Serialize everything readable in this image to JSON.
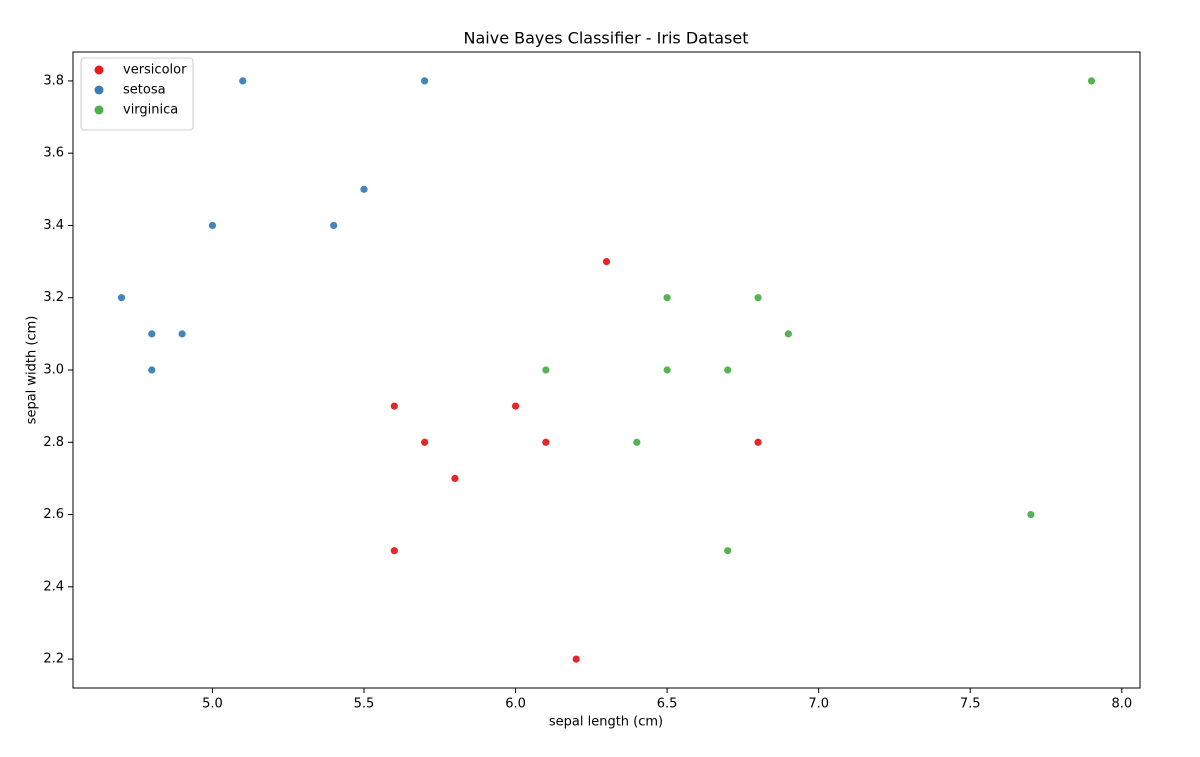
{
  "chart_data": {
    "type": "scatter",
    "title": "Naive Bayes Classifier - Iris Dataset",
    "x_label": "sepal length (cm)",
    "y_label": "sepal width (cm)",
    "xlim": [
      4.54,
      8.06
    ],
    "ylim": [
      2.12,
      3.88
    ],
    "xticks": [
      {
        "value": 5,
        "label": "5.0"
      },
      5.5,
      {
        "value": 6,
        "label": "6.0"
      },
      6.5,
      {
        "value": 7,
        "label": "7.0"
      },
      7.5,
      {
        "value": 8,
        "label": "8.0"
      }
    ],
    "yticks": [
      2.2,
      2.4,
      2.6,
      2.8,
      {
        "value": 3,
        "label": "3.0"
      },
      3.2,
      3.4,
      3.6,
      3.8
    ],
    "legend": "upper left",
    "grid": false,
    "series": [
      {
        "name": "versicolor",
        "color": "#e41a1c",
        "x": [
          6.3,
          5.6,
          6.0,
          5.7,
          6.1,
          6.8,
          5.8,
          5.6,
          6.2
        ],
        "values": [
          3.3,
          2.9,
          2.9,
          2.8,
          2.8,
          2.8,
          2.7,
          2.5,
          2.2
        ]
      },
      {
        "name": "setosa",
        "color": "#377eb8",
        "x": [
          5.1,
          5.7,
          5.5,
          5.0,
          5.4,
          4.7,
          4.8,
          4.9,
          4.8
        ],
        "values": [
          3.8,
          3.8,
          3.5,
          3.4,
          3.4,
          3.2,
          3.1,
          3.1,
          3.0
        ]
      },
      {
        "name": "virginica",
        "color": "#4daf4a",
        "x": [
          7.9,
          6.5,
          6.8,
          6.9,
          6.1,
          6.5,
          6.7,
          6.4,
          7.7,
          6.7
        ],
        "values": [
          3.8,
          3.2,
          3.2,
          3.1,
          3.0,
          3.0,
          3.0,
          2.8,
          2.6,
          2.5
        ]
      }
    ]
  }
}
